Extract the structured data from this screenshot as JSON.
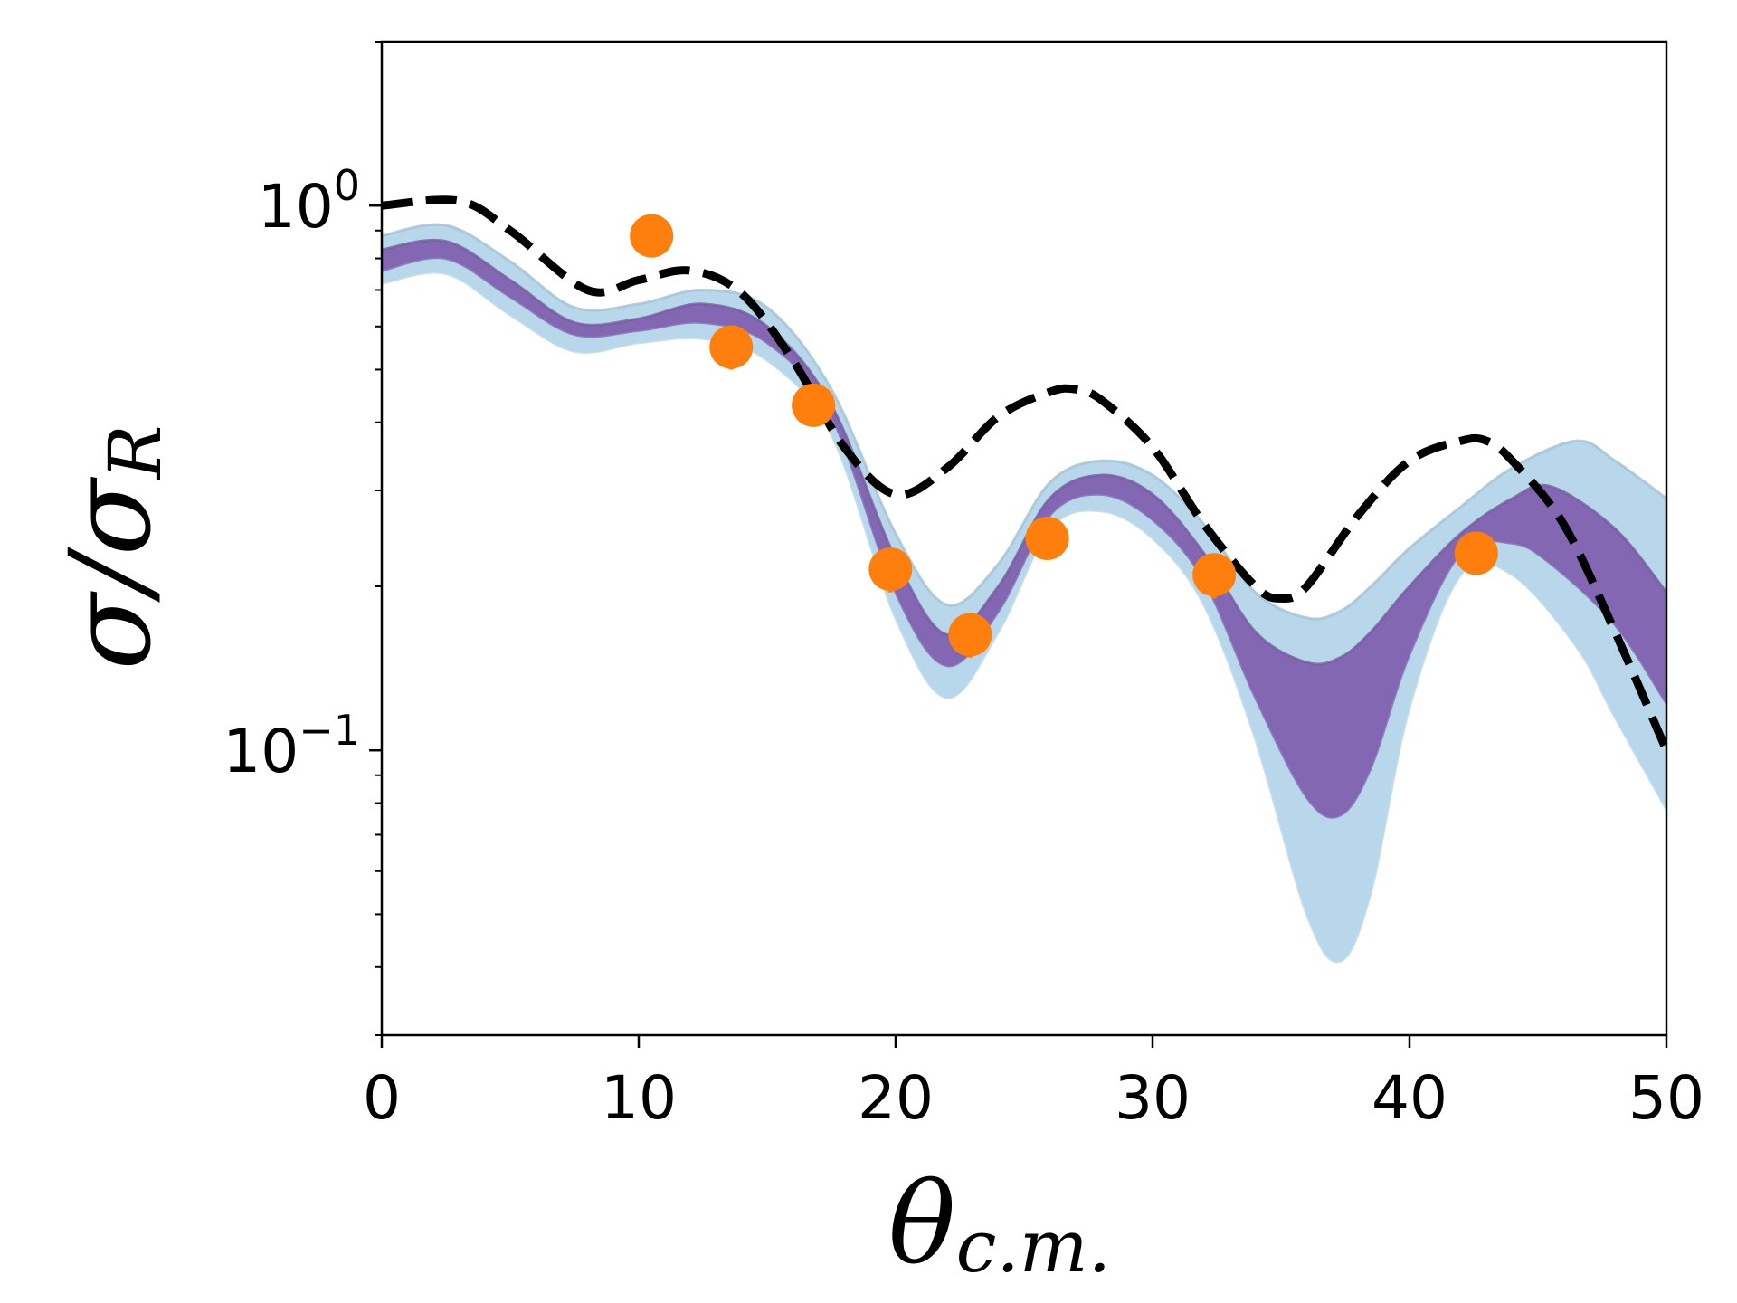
{
  "chart_data": {
    "type": "line",
    "title": "",
    "xlabel": "θc.m.",
    "ylabel": "σ/σR",
    "xlim": [
      0,
      50
    ],
    "ylim": [
      0.03,
      2.0
    ],
    "yscale": "log",
    "grid": false,
    "x_ticks": [
      0,
      10,
      20,
      30,
      40,
      50
    ],
    "x_tick_labels": [
      "0",
      "10",
      "20",
      "30",
      "40",
      "50"
    ],
    "y_ticks": [
      0.1,
      1.0
    ],
    "y_tick_labels": [
      {
        "base": "10",
        "exp": "−1"
      },
      {
        "base": "10",
        "exp": "0"
      }
    ],
    "series": [
      {
        "kind": "band",
        "color": "#b8d7ea",
        "x": [
          0,
          2.5,
          5,
          7.5,
          10,
          12.5,
          15,
          17.5,
          20,
          22,
          24,
          26,
          28,
          30,
          32,
          34,
          36,
          37.3,
          38.5,
          40,
          42,
          44,
          46.5,
          48,
          50
        ],
        "lower": [
          0.72,
          0.75,
          0.63,
          0.54,
          0.56,
          0.57,
          0.52,
          0.38,
          0.175,
          0.125,
          0.165,
          0.255,
          0.275,
          0.245,
          0.185,
          0.105,
          0.05,
          0.041,
          0.055,
          0.12,
          0.21,
          0.21,
          0.155,
          0.115,
          0.078
        ],
        "upper": [
          0.88,
          0.92,
          0.79,
          0.65,
          0.66,
          0.7,
          0.65,
          0.46,
          0.25,
          0.185,
          0.22,
          0.31,
          0.34,
          0.32,
          0.26,
          0.195,
          0.175,
          0.18,
          0.2,
          0.235,
          0.28,
          0.33,
          0.37,
          0.34,
          0.29
        ]
      },
      {
        "kind": "band",
        "color": "#8367b3",
        "x": [
          0,
          2.5,
          5,
          7.5,
          10,
          12.5,
          15,
          17.5,
          20,
          22,
          24,
          26,
          28,
          30,
          32,
          34,
          36,
          37.3,
          38.5,
          40,
          42,
          44,
          45.5,
          48,
          50
        ],
        "lower": [
          0.76,
          0.8,
          0.68,
          0.58,
          0.59,
          0.61,
          0.56,
          0.41,
          0.195,
          0.143,
          0.18,
          0.27,
          0.295,
          0.265,
          0.205,
          0.125,
          0.082,
          0.076,
          0.093,
          0.15,
          0.23,
          0.24,
          0.22,
          0.17,
          0.122
        ],
        "upper": [
          0.83,
          0.86,
          0.73,
          0.61,
          0.62,
          0.66,
          0.6,
          0.43,
          0.225,
          0.163,
          0.2,
          0.29,
          0.32,
          0.295,
          0.23,
          0.165,
          0.145,
          0.148,
          0.165,
          0.2,
          0.25,
          0.29,
          0.305,
          0.255,
          0.195
        ]
      },
      {
        "kind": "line",
        "style": "dashed",
        "color": "#000000",
        "x": [
          0,
          3,
          5,
          8,
          10,
          12,
          14,
          16,
          18,
          20,
          22,
          24,
          26,
          27,
          28,
          30,
          32,
          34,
          35,
          36,
          38,
          40,
          42,
          43,
          44,
          46,
          48,
          50
        ],
        "y": [
          1.0,
          1.02,
          0.9,
          0.7,
          0.73,
          0.76,
          0.69,
          0.52,
          0.36,
          0.295,
          0.33,
          0.41,
          0.455,
          0.46,
          0.44,
          0.36,
          0.26,
          0.2,
          0.19,
          0.2,
          0.27,
          0.34,
          0.37,
          0.37,
          0.34,
          0.26,
          0.165,
          0.1
        ]
      },
      {
        "kind": "scatter",
        "color": "#ff7f0e",
        "x": [
          10.5,
          13.6,
          16.8,
          19.8,
          22.9,
          25.9,
          32.4,
          42.6
        ],
        "y": [
          0.88,
          0.55,
          0.43,
          0.215,
          0.163,
          0.245,
          0.21,
          0.23
        ],
        "err": [
          0.07,
          0.05,
          0.03,
          0.02,
          0.015,
          0.02,
          0.02,
          0.02
        ]
      }
    ]
  }
}
